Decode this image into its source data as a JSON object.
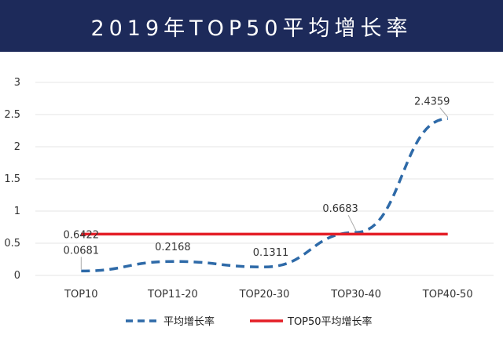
{
  "header": {
    "title": "2019年TOP50平均增长率"
  },
  "colors": {
    "header_bg": "#1d2a5a",
    "series_avg": "#2e6aa8",
    "series_top50": "#e41e26",
    "grid": "#e6e6e6"
  },
  "chart_data": {
    "type": "line",
    "title": "2019年TOP50平均增长率",
    "categories": [
      "TOP10",
      "TOP11-20",
      "TOP20-30",
      "TOP30-40",
      "TOP40-50"
    ],
    "ylim": [
      0,
      3
    ],
    "yticks": [
      "0",
      "0.5",
      "1",
      "1.5",
      "2",
      "2.5",
      "3"
    ],
    "grid": "horizontal",
    "legend_position": "bottom",
    "series": [
      {
        "name": "平均增长率",
        "style": "dashed",
        "values": [
          0.0681,
          0.2168,
          0.1311,
          0.6683,
          2.4359
        ],
        "labels": [
          "0.0681",
          "0.2168",
          "0.1311",
          "0.6683",
          "2.4359"
        ]
      },
      {
        "name": "TOP50平均增长率",
        "style": "solid",
        "values": [
          0.6422,
          0.6422,
          0.6422,
          0.6422,
          0.6422
        ],
        "labels": [
          "0.6422"
        ]
      }
    ]
  }
}
